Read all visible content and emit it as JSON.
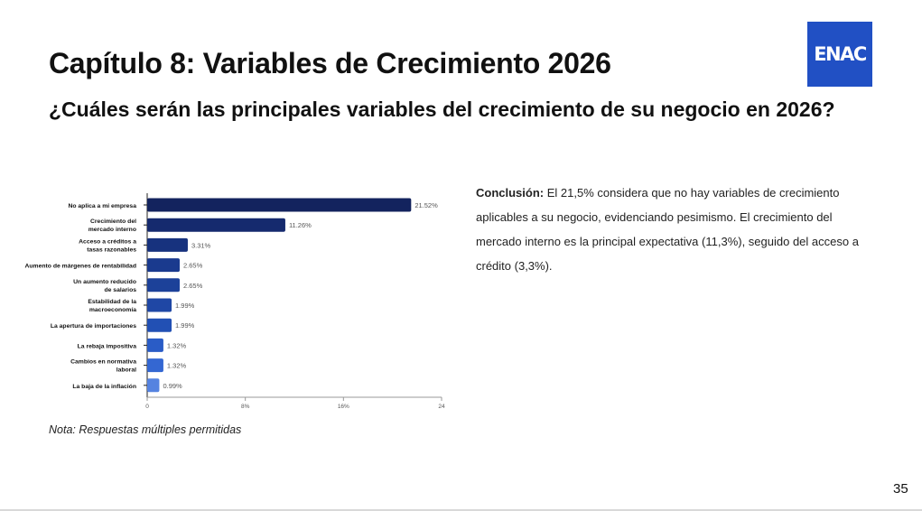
{
  "header": {
    "title": "Capítulo 8: Variables de Crecimiento 2026",
    "subtitle": "¿Cuáles serán las principales variables del crecimiento de su negocio en 2026?",
    "logo_text": "ENAC",
    "logo_color": "#2150c4"
  },
  "conclusion": {
    "label": "Conclusión:",
    "text": "El 21,5% considera que no hay variables de crecimiento aplicables a su negocio, evidenciando pesimismo. El crecimiento del mercado interno es la principal expectativa (11,3%), seguido del acceso a crédito (3,3%)."
  },
  "note": "Nota: Respuestas múltiples permitidas",
  "page_number": "35",
  "chart_data": {
    "type": "bar",
    "orientation": "horizontal",
    "categories": [
      [
        "No aplica a mi empresa"
      ],
      [
        "Crecimiento del",
        "mercado interno"
      ],
      [
        "Acceso a créditos a",
        "tasas razonables"
      ],
      [
        "Aumento de márgenes de rentabilidad"
      ],
      [
        "Un aumento reducido",
        "de salarios"
      ],
      [
        "Estabilidad de la",
        "macroeconomía"
      ],
      [
        "La apertura de importaciones"
      ],
      [
        "La rebaja impositiva"
      ],
      [
        "Cambios en normativa",
        "laboral"
      ],
      [
        "La baja de la inflación"
      ]
    ],
    "values": [
      21.52,
      11.26,
      3.31,
      2.65,
      2.65,
      1.99,
      1.99,
      1.32,
      1.32,
      0.99
    ],
    "data_labels": [
      "21.52%",
      "11.26%",
      "3.31%",
      "2.65%",
      "2.65%",
      "1.99%",
      "1.99%",
      "1.32%",
      "1.32%",
      "0.99%"
    ],
    "x_ticks": [
      0,
      8,
      16,
      24
    ],
    "x_tick_labels": [
      "0",
      "8%",
      "16%",
      "24"
    ],
    "xlim": [
      0,
      24
    ],
    "bar_colors": [
      "#13235e",
      "#152a6e",
      "#17327e",
      "#1a3a8e",
      "#1c4199",
      "#1f47a5",
      "#2250b4",
      "#2a5cc6",
      "#3467d2",
      "#5583e0"
    ],
    "grid": false,
    "legend": "none"
  }
}
